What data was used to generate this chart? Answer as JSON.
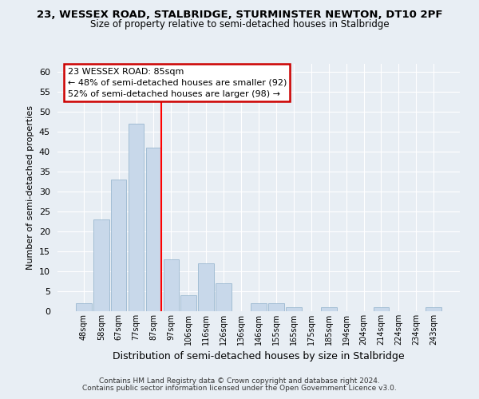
{
  "title": "23, WESSEX ROAD, STALBRIDGE, STURMINSTER NEWTON, DT10 2PF",
  "subtitle": "Size of property relative to semi-detached houses in Stalbridge",
  "xlabel": "Distribution of semi-detached houses by size in Stalbridge",
  "ylabel": "Number of semi-detached properties",
  "bar_labels": [
    "48sqm",
    "58sqm",
    "67sqm",
    "77sqm",
    "87sqm",
    "97sqm",
    "106sqm",
    "116sqm",
    "126sqm",
    "136sqm",
    "146sqm",
    "155sqm",
    "165sqm",
    "175sqm",
    "185sqm",
    "194sqm",
    "204sqm",
    "214sqm",
    "224sqm",
    "234sqm",
    "243sqm"
  ],
  "bar_values": [
    2,
    23,
    33,
    47,
    41,
    13,
    4,
    12,
    7,
    0,
    2,
    2,
    1,
    0,
    1,
    0,
    0,
    1,
    0,
    0,
    1
  ],
  "bar_color": "#c8d8ea",
  "bar_edge_color": "#9ab8d0",
  "reference_line_color": "red",
  "reference_line_bar_index": 4,
  "annotation_title": "23 WESSEX ROAD: 85sqm",
  "annotation_line1": "← 48% of semi-detached houses are smaller (92)",
  "annotation_line2": "52% of semi-detached houses are larger (98) →",
  "annotation_box_color": "#ffffff",
  "annotation_box_edge": "#cc0000",
  "ylim": [
    0,
    62
  ],
  "yticks": [
    0,
    5,
    10,
    15,
    20,
    25,
    30,
    35,
    40,
    45,
    50,
    55,
    60
  ],
  "footer_line1": "Contains HM Land Registry data © Crown copyright and database right 2024.",
  "footer_line2": "Contains public sector information licensed under the Open Government Licence v3.0.",
  "bg_color": "#e8eef4",
  "plot_bg_color": "#e8eef4",
  "grid_color": "#ffffff",
  "title_fontsize": 9.5,
  "subtitle_fontsize": 8.5
}
